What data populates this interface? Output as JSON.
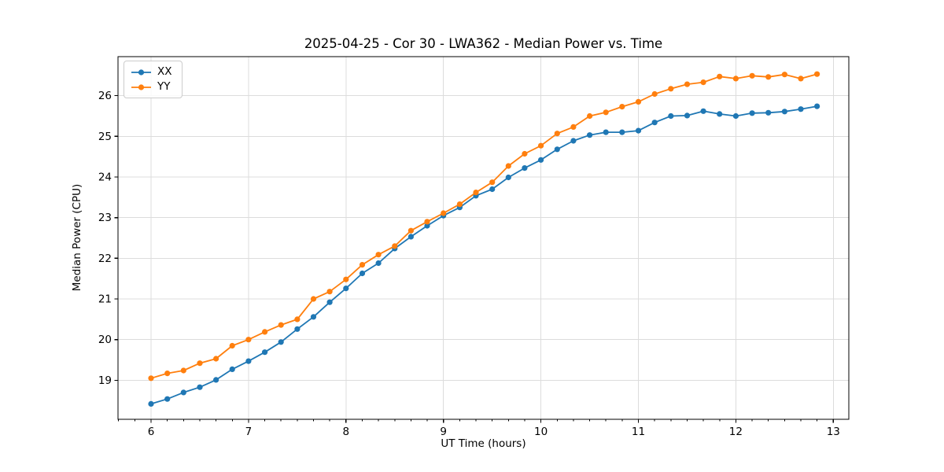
{
  "figure": {
    "title": "2025-04-25 - Cor 30 - LWA362 - Median Power vs. Time"
  },
  "chart_data": {
    "type": "line",
    "title": "2025-04-25 - Cor 30 - LWA362 - Median Power vs. Time",
    "xlabel": "UT Time (hours)",
    "ylabel": "Median Power (CPU)",
    "marker": "o",
    "grid": true,
    "legend_position": "upper left",
    "xlim": [
      5.661,
      13.159
    ],
    "ylim": [
      18.04,
      26.96
    ],
    "x_ticks": [
      6,
      7,
      8,
      9,
      10,
      11,
      12,
      13
    ],
    "y_ticks": [
      19,
      20,
      21,
      22,
      23,
      24,
      25,
      26
    ],
    "x_minor_divisions": 6,
    "x": [
      6.0,
      6.167,
      6.333,
      6.5,
      6.667,
      6.833,
      7.0,
      7.167,
      7.333,
      7.5,
      7.667,
      7.833,
      8.0,
      8.167,
      8.333,
      8.5,
      8.667,
      8.833,
      9.0,
      9.167,
      9.333,
      9.5,
      9.667,
      9.833,
      10.0,
      10.167,
      10.333,
      10.5,
      10.667,
      10.833,
      11.0,
      11.167,
      11.333,
      11.5,
      11.667,
      11.833,
      12.0,
      12.167,
      12.333,
      12.5,
      12.667,
      12.833
    ],
    "series": [
      {
        "name": "XX",
        "color": "#1f77b4",
        "values": [
          18.42,
          18.54,
          18.7,
          18.83,
          19.01,
          19.27,
          19.47,
          19.69,
          19.94,
          20.26,
          20.56,
          20.92,
          21.26,
          21.63,
          21.88,
          22.24,
          22.53,
          22.8,
          23.05,
          23.25,
          23.54,
          23.7,
          23.99,
          24.22,
          24.42,
          24.68,
          24.89,
          25.03,
          25.1,
          25.1,
          25.14,
          25.34,
          25.5,
          25.51,
          25.62,
          25.55,
          25.5,
          25.57,
          25.58,
          25.61,
          25.67,
          25.74
        ]
      },
      {
        "name": "YY",
        "color": "#ff7f0e",
        "values": [
          19.05,
          19.17,
          19.24,
          19.42,
          19.53,
          19.85,
          20.0,
          20.19,
          20.36,
          20.5,
          21.0,
          21.18,
          21.48,
          21.84,
          22.09,
          22.3,
          22.68,
          22.9,
          23.11,
          23.33,
          23.62,
          23.87,
          24.27,
          24.57,
          24.77,
          25.07,
          25.23,
          25.5,
          25.59,
          25.73,
          25.85,
          26.04,
          26.17,
          26.28,
          26.33,
          26.47,
          26.42,
          26.49,
          26.46,
          26.52,
          26.42,
          26.53
        ]
      }
    ],
    "style": {
      "grid_color": "#dcdcdc",
      "spine_color": "#000000",
      "background": "#ffffff"
    }
  }
}
